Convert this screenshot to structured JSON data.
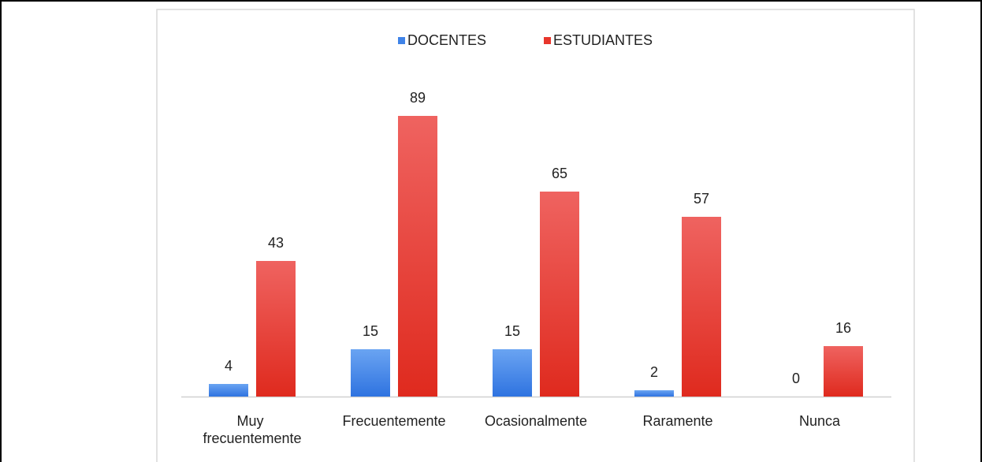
{
  "chart_data": {
    "type": "bar",
    "categories": [
      "Muy frecuentemente",
      "Frecuentemente",
      "Ocasionalmente",
      "Raramente",
      "Nunca"
    ],
    "series": [
      {
        "name": "DOCENTES",
        "color": "#3f83e8",
        "values": [
          4,
          15,
          15,
          2,
          0
        ]
      },
      {
        "name": "ESTUDIANTES",
        "color": "#e8362c",
        "values": [
          43,
          89,
          65,
          57,
          16
        ]
      }
    ],
    "ylim": [
      0,
      100
    ],
    "legend": "top",
    "grid": false
  }
}
